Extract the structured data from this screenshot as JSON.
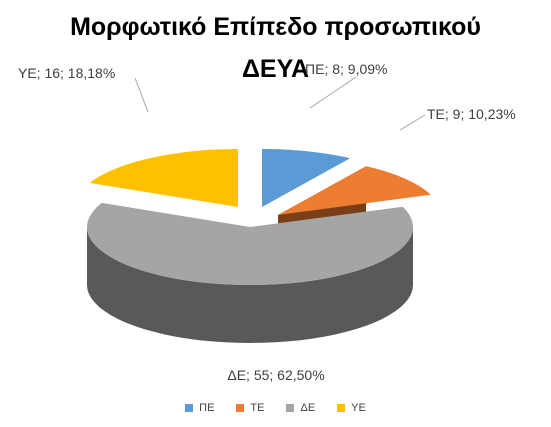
{
  "chart_data": {
    "type": "pie",
    "title_line1": "Μορφωτικό Επίπεδο προσωπικού",
    "title_line2": "ΔΕΥΑ",
    "slices": [
      {
        "name": "ΠΕ",
        "value": 8,
        "percent": "9,09%",
        "label": "ΠΕ; 8; 9,09%",
        "color": "#5b9bd5",
        "side": "#2e4f6e"
      },
      {
        "name": "ΤΕ",
        "value": 9,
        "percent": "10,23%",
        "label": "ΤΕ; 9; 10,23%",
        "color": "#ed7d31",
        "side": "#7a3f17"
      },
      {
        "name": "ΔΕ",
        "value": 55,
        "percent": "62,50%",
        "label": "ΔΕ; 55; 62,50%",
        "color": "#a5a5a5",
        "side": "#595959"
      },
      {
        "name": "ΥΕ",
        "value": 16,
        "percent": "18,18%",
        "label": "ΥΕ; 16; 18,18%",
        "color": "#ffc000",
        "side": "#8a6a00"
      }
    ],
    "legend_position": "bottom"
  }
}
